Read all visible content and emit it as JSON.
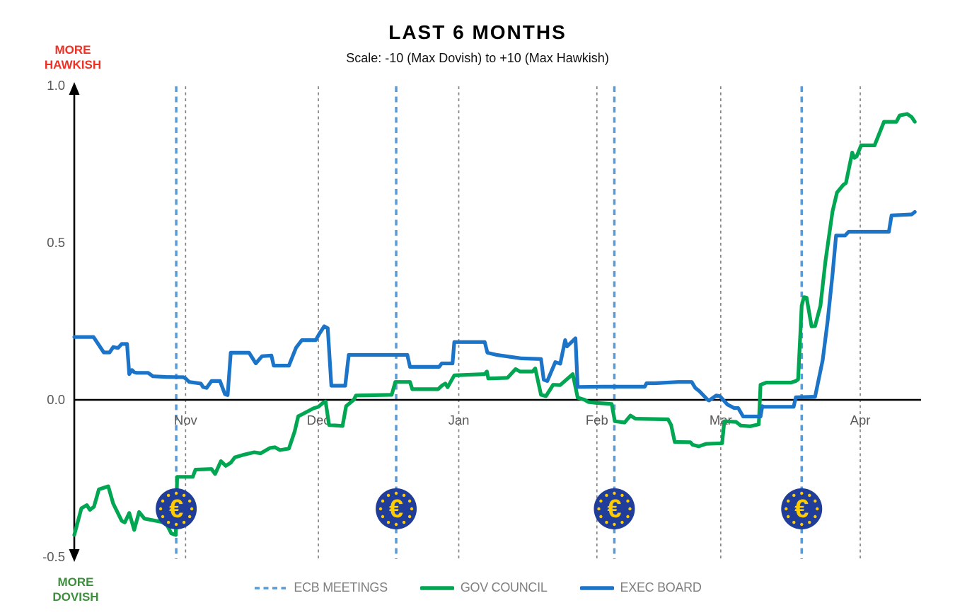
{
  "title": "LAST 6 MONTHS",
  "subtitle": "Scale: -10 (Max Dovish) to +10 (Max Hawkish)",
  "axis_annotations": {
    "top": "MORE HAWKISH",
    "bottom": "MORE DOVISH"
  },
  "legend": [
    {
      "label": "ECB MEETINGS",
      "style": "dashed",
      "color": "#5B9BD5"
    },
    {
      "label": "GOV COUNCIL",
      "style": "solid",
      "color": "#00A651"
    },
    {
      "label": "EXEC BOARD",
      "style": "solid",
      "color": "#1B74C8"
    }
  ],
  "colors": {
    "gov_council": "#00A651",
    "exec_board": "#1B74C8",
    "ecb_meeting_line": "#5B9BD5",
    "month_gridline": "#7F7F7F",
    "zero_axis": "#000000",
    "tick_text": "#595959",
    "hawkish_text": "#EE3124",
    "dovish_text": "#3E8E3E",
    "coin_blue": "#1F3D99",
    "coin_gold": "#FFCC00",
    "euro_icon": "€"
  },
  "chart_data": {
    "type": "line",
    "title": "LAST 6 MONTHS",
    "subtitle": "Scale: -10 (Max Dovish) to +10 (Max Hawkish)",
    "xlabel": "",
    "ylabel": "",
    "x_unit": "days from chart start (early Oct) to mid Apr",
    "ylim": [
      -0.5,
      1.0
    ],
    "yticks": [
      1.0,
      0.5,
      0.0,
      -0.5
    ],
    "ytick_labels": [
      "1.0",
      "0.5",
      "0.0",
      "-0.5"
    ],
    "grid": "vertical-dashed-at-month-starts",
    "legend_position": "bottom-center",
    "month_ticks": [
      {
        "label": "Nov",
        "day": 24.9
      },
      {
        "label": "Dec",
        "day": 54.6
      },
      {
        "label": "Jan",
        "day": 86.0
      },
      {
        "label": "Feb",
        "day": 116.9
      },
      {
        "label": "Mar",
        "day": 144.6
      },
      {
        "label": "Apr",
        "day": 175.8
      }
    ],
    "ecb_meetings_days": [
      22.8,
      72.0,
      120.8,
      162.7
    ],
    "series": [
      {
        "name": "GOV COUNCIL",
        "color": "#00A651",
        "points": [
          [
            0,
            -0.43
          ],
          [
            1.6,
            -0.345
          ],
          [
            2.8,
            -0.335
          ],
          [
            3.5,
            -0.35
          ],
          [
            4.4,
            -0.34
          ],
          [
            5.5,
            -0.285
          ],
          [
            7.6,
            -0.275
          ],
          [
            8.7,
            -0.33
          ],
          [
            10.6,
            -0.385
          ],
          [
            11.3,
            -0.39
          ],
          [
            12.3,
            -0.36
          ],
          [
            13.4,
            -0.414
          ],
          [
            14.5,
            -0.357
          ],
          [
            15.7,
            -0.378
          ],
          [
            19.7,
            -0.389
          ],
          [
            20.8,
            -0.4
          ],
          [
            21.7,
            -0.425
          ],
          [
            22.7,
            -0.43
          ],
          [
            23,
            -0.245
          ],
          [
            26.5,
            -0.245
          ],
          [
            27.1,
            -0.222
          ],
          [
            30.7,
            -0.22
          ],
          [
            31.5,
            -0.236
          ],
          [
            32.8,
            -0.195
          ],
          [
            33.9,
            -0.21
          ],
          [
            35,
            -0.2
          ],
          [
            35.9,
            -0.183
          ],
          [
            37.8,
            -0.175
          ],
          [
            40.2,
            -0.167
          ],
          [
            41.7,
            -0.17
          ],
          [
            43.8,
            -0.153
          ],
          [
            44.9,
            -0.151
          ],
          [
            46,
            -0.16
          ],
          [
            48,
            -0.155
          ],
          [
            49.3,
            -0.1
          ],
          [
            50.1,
            -0.052
          ],
          [
            50.7,
            -0.048
          ],
          [
            53.5,
            -0.027
          ],
          [
            54.6,
            -0.022
          ],
          [
            55.6,
            -0.01
          ],
          [
            56.2,
            -0.005
          ],
          [
            57,
            -0.08
          ],
          [
            60,
            -0.083
          ],
          [
            60.8,
            -0.02
          ],
          [
            62.5,
            0
          ],
          [
            63,
            0.014
          ],
          [
            71,
            0.016
          ],
          [
            71.8,
            0.057
          ],
          [
            75.1,
            0.057
          ],
          [
            75.6,
            0.034
          ],
          [
            81.4,
            0.034
          ],
          [
            82.2,
            0.045
          ],
          [
            83,
            0.052
          ],
          [
            83.5,
            0.04
          ],
          [
            85,
            0.078
          ],
          [
            91.8,
            0.082
          ],
          [
            92.3,
            0.09
          ],
          [
            92.6,
            0.068
          ],
          [
            96.9,
            0.07
          ],
          [
            98.7,
            0.098
          ],
          [
            99.7,
            0.09
          ],
          [
            102.5,
            0.09
          ],
          [
            103.1,
            0.1
          ],
          [
            104.4,
            0.016
          ],
          [
            105.5,
            0.012
          ],
          [
            107.1,
            0.048
          ],
          [
            108.7,
            0.047
          ],
          [
            111.5,
            0.082
          ],
          [
            112.6,
            0.007
          ],
          [
            114.2,
            0
          ],
          [
            115,
            -0.007
          ],
          [
            116.9,
            -0.01
          ],
          [
            120.2,
            -0.013
          ],
          [
            120.9,
            -0.068
          ],
          [
            123.1,
            -0.072
          ],
          [
            124.4,
            -0.05
          ],
          [
            125.5,
            -0.06
          ],
          [
            132.8,
            -0.062
          ],
          [
            133.5,
            -0.08
          ],
          [
            134.3,
            -0.134
          ],
          [
            137.8,
            -0.135
          ],
          [
            138.3,
            -0.143
          ],
          [
            139.7,
            -0.148
          ],
          [
            141.3,
            -0.14
          ],
          [
            144.9,
            -0.138
          ],
          [
            145.4,
            -0.068
          ],
          [
            148,
            -0.07
          ],
          [
            149.1,
            -0.082
          ],
          [
            151.2,
            -0.084
          ],
          [
            153.1,
            -0.078
          ],
          [
            153.5,
            0.048
          ],
          [
            154.8,
            0.055
          ],
          [
            160.3,
            0.055
          ],
          [
            161.4,
            0.06
          ],
          [
            161.9,
            0.065
          ],
          [
            162.7,
            0.3
          ],
          [
            163.2,
            0.327
          ],
          [
            163.8,
            0.325
          ],
          [
            164.9,
            0.234
          ],
          [
            165.7,
            0.235
          ],
          [
            166.9,
            0.3
          ],
          [
            168,
            0.44
          ],
          [
            168.8,
            0.52
          ],
          [
            169.6,
            0.6
          ],
          [
            170.6,
            0.66
          ],
          [
            172,
            0.684
          ],
          [
            172.6,
            0.69
          ],
          [
            174,
            0.787
          ],
          [
            174.5,
            0.77
          ],
          [
            175,
            0.775
          ],
          [
            176,
            0.81
          ],
          [
            179,
            0.81
          ],
          [
            181.1,
            0.885
          ],
          [
            183.9,
            0.885
          ],
          [
            184.6,
            0.905
          ],
          [
            186.3,
            0.91
          ],
          [
            187.3,
            0.9
          ],
          [
            188,
            0.885
          ]
        ]
      },
      {
        "name": "EXEC BOARD",
        "color": "#1B74C8",
        "points": [
          [
            0,
            0.2
          ],
          [
            4.3,
            0.2
          ],
          [
            6.6,
            0.151
          ],
          [
            7.9,
            0.151
          ],
          [
            8.7,
            0.168
          ],
          [
            9.8,
            0.165
          ],
          [
            10.6,
            0.178
          ],
          [
            11.8,
            0.178
          ],
          [
            12.3,
            0.082
          ],
          [
            12.9,
            0.095
          ],
          [
            13.4,
            0.088
          ],
          [
            13.9,
            0.086
          ],
          [
            16.5,
            0.086
          ],
          [
            17.6,
            0.075
          ],
          [
            20.5,
            0.073
          ],
          [
            24.4,
            0.072
          ],
          [
            24.9,
            0.068
          ],
          [
            25.7,
            0.057
          ],
          [
            28.3,
            0.052
          ],
          [
            28.8,
            0.041
          ],
          [
            29.6,
            0.038
          ],
          [
            30.7,
            0.06
          ],
          [
            32.6,
            0.06
          ],
          [
            33.7,
            0.018
          ],
          [
            34.3,
            0.015
          ],
          [
            35,
            0.15
          ],
          [
            39.1,
            0.15
          ],
          [
            40.6,
            0.116
          ],
          [
            42,
            0.139
          ],
          [
            44.1,
            0.141
          ],
          [
            44.6,
            0.109
          ],
          [
            48,
            0.109
          ],
          [
            49.6,
            0.166
          ],
          [
            50.9,
            0.19
          ],
          [
            54,
            0.19
          ],
          [
            54.8,
            0.21
          ],
          [
            55.9,
            0.234
          ],
          [
            56.7,
            0.228
          ],
          [
            57.5,
            0.045
          ],
          [
            60.6,
            0.045
          ],
          [
            61.4,
            0.143
          ],
          [
            74.5,
            0.143
          ],
          [
            75.1,
            0.105
          ],
          [
            81.6,
            0.105
          ],
          [
            82.2,
            0.116
          ],
          [
            84.6,
            0.116
          ],
          [
            85,
            0.184
          ],
          [
            91.8,
            0.184
          ],
          [
            92.4,
            0.15
          ],
          [
            94.5,
            0.143
          ],
          [
            100,
            0.132
          ],
          [
            104.4,
            0.13
          ],
          [
            105,
            0.064
          ],
          [
            105.8,
            0.06
          ],
          [
            107.6,
            0.12
          ],
          [
            108.7,
            0.115
          ],
          [
            109.8,
            0.19
          ],
          [
            110.2,
            0.17
          ],
          [
            112.1,
            0.196
          ],
          [
            112.6,
            0.041
          ],
          [
            118.1,
            0.042
          ],
          [
            127.6,
            0.042
          ],
          [
            128,
            0.053
          ],
          [
            129.9,
            0.053
          ],
          [
            135.1,
            0.057
          ],
          [
            138.1,
            0.057
          ],
          [
            138.9,
            0.038
          ],
          [
            139.8,
            0.028
          ],
          [
            141.7,
            0
          ],
          [
            142,
            -0.002
          ],
          [
            143.6,
            0.014
          ],
          [
            144.4,
            0.012
          ],
          [
            146.1,
            -0.015
          ],
          [
            147.6,
            -0.026
          ],
          [
            148.5,
            -0.026
          ],
          [
            149.6,
            -0.053
          ],
          [
            153.5,
            -0.053
          ],
          [
            153.9,
            -0.02
          ],
          [
            154.3,
            -0.022
          ],
          [
            160.9,
            -0.022
          ],
          [
            161.4,
            0.008
          ],
          [
            165.7,
            0.01
          ],
          [
            167.4,
            0.127
          ],
          [
            168.5,
            0.25
          ],
          [
            169.6,
            0.4
          ],
          [
            170.4,
            0.523
          ],
          [
            172.4,
            0.523
          ],
          [
            173.2,
            0.535
          ],
          [
            182.2,
            0.535
          ],
          [
            182.8,
            0.587
          ],
          [
            187.3,
            0.59
          ],
          [
            188,
            0.598
          ]
        ]
      }
    ]
  }
}
